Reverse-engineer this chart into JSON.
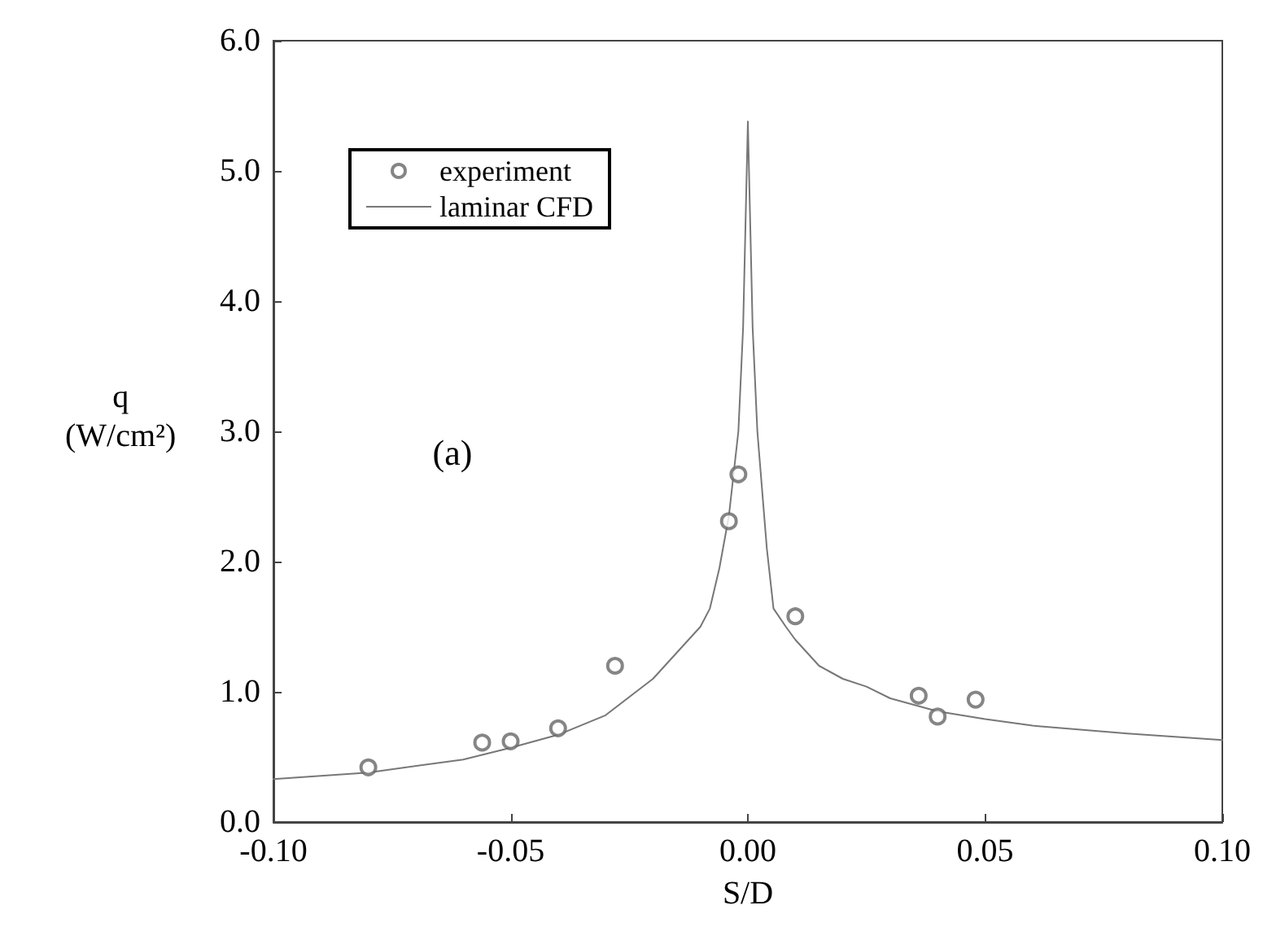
{
  "chart_data": {
    "type": "scatter",
    "xlabel": "S/D",
    "ylabel": "q\n(W/cm²)",
    "annotations": [
      "(a)"
    ],
    "xlim": [
      -0.1,
      0.1
    ],
    "ylim": [
      0,
      6
    ],
    "xticks": [
      {
        "value": -0.1,
        "label": "-0.10"
      },
      {
        "value": -0.05,
        "label": "-0.05"
      },
      {
        "value": 0,
        "label": "0.00"
      },
      {
        "value": 0.05,
        "label": "0.05"
      },
      {
        "value": 0.1,
        "label": "0.10"
      }
    ],
    "yticks": [
      {
        "value": 0,
        "label": "0.0"
      },
      {
        "value": 1,
        "label": "1.0"
      },
      {
        "value": 2,
        "label": "2.0"
      },
      {
        "value": 3,
        "label": "3.0"
      },
      {
        "value": 4,
        "label": "4.0"
      },
      {
        "value": 5,
        "label": "5.0"
      },
      {
        "value": 6,
        "label": "6.0"
      }
    ],
    "grid": false,
    "legend": "top left",
    "marker": "circle",
    "series": [
      {
        "name": "experiment",
        "color": "#666666",
        "x": [
          -0.08,
          -0.056,
          -0.05,
          -0.04,
          -0.028,
          -0.004,
          -0.002,
          0.01,
          0.036,
          0.04,
          0.048
        ],
        "values": [
          0.42,
          0.61,
          0.62,
          0.72,
          1.2,
          2.31,
          2.67,
          1.58,
          0.97,
          0.81,
          0.94
        ]
      },
      {
        "name": "laminar CFD",
        "type": "line",
        "color": "#777777",
        "marker": "none",
        "line_style": "solid",
        "x": [
          -0.1,
          -0.08,
          -0.06,
          -0.05,
          -0.04,
          -0.03,
          -0.02,
          -0.015,
          -0.01,
          -0.008,
          -0.006,
          -0.004,
          -0.002,
          -0.001,
          0,
          0.001,
          0.002,
          0.004,
          0.0054,
          0.008,
          0.01,
          0.015,
          0.02,
          0.025,
          0.03,
          0.04,
          0.05,
          0.06,
          0.08,
          0.1
        ],
        "values": [
          0.33,
          0.38,
          0.48,
          0.57,
          0.67,
          0.82,
          1.1,
          1.3,
          1.5,
          1.64,
          1.95,
          2.35,
          3.0,
          3.8,
          5.38,
          3.8,
          3.0,
          2.1,
          1.64,
          1.5,
          1.4,
          1.2,
          1.1,
          1.04,
          0.95,
          0.85,
          0.79,
          0.74,
          0.68,
          0.63
        ]
      }
    ]
  }
}
